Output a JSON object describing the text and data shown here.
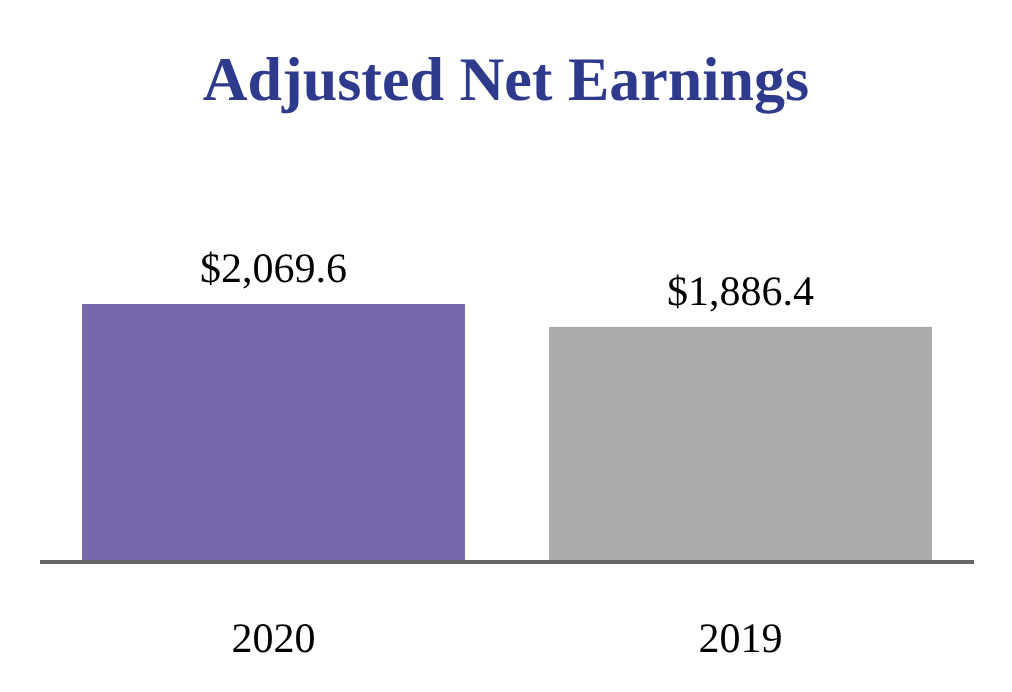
{
  "chart_data": {
    "type": "bar",
    "title": "Adjusted Net Earnings",
    "categories": [
      "2020",
      "2019"
    ],
    "values": [
      2069.6,
      1886.4
    ],
    "colors": [
      "#7866ab",
      "#ababab"
    ],
    "value_labels": [
      "$2,069.6",
      "$1,886.4"
    ]
  }
}
